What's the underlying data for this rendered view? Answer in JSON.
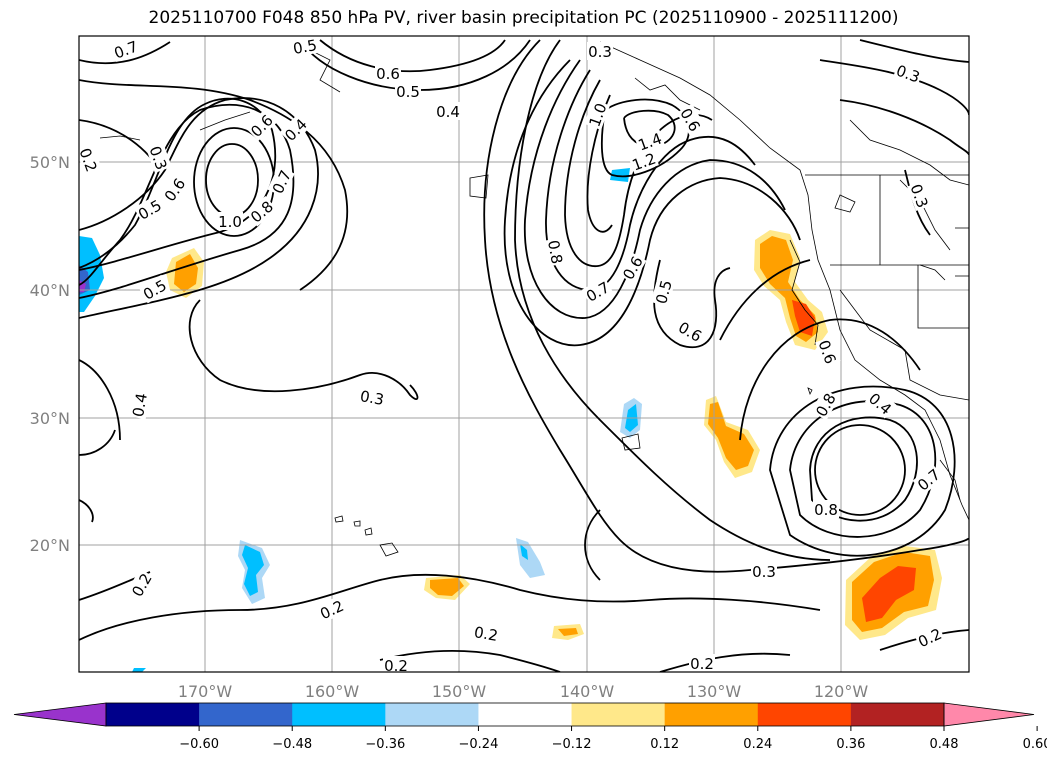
{
  "title": "2025110700 F048 850 hPa PV, river basin precipitation PC (2025110900 - 2025111200)",
  "lat_labels": [
    "50°N",
    "40°N",
    "30°N",
    "20°N"
  ],
  "lon_labels": [
    "170°W",
    "160°W",
    "150°W",
    "140°W",
    "130°W",
    "120°W"
  ],
  "colorbar": {
    "ticks": [
      "−0.60",
      "−0.48",
      "−0.36",
      "−0.24",
      "−0.12",
      "0.12",
      "0.24",
      "0.36",
      "0.48",
      "0.60"
    ],
    "colors": [
      "#9933cc",
      "#00008b",
      "#3366cc",
      "#00bfff",
      "#add8f6",
      "#ffffff",
      "#ffe88a",
      "#ffa000",
      "#ff4500",
      "#b22222",
      "#ff88aa"
    ]
  },
  "contour_labels": [
    {
      "t": "0.7"
    },
    {
      "t": "0.2"
    },
    {
      "t": "0.3"
    },
    {
      "t": "0.5"
    },
    {
      "t": "0.6"
    },
    {
      "t": "0.5"
    },
    {
      "t": "1.0"
    },
    {
      "t": "0.8"
    },
    {
      "t": "0.7"
    },
    {
      "t": "0.4"
    },
    {
      "t": "0.6"
    },
    {
      "t": "0.5"
    },
    {
      "t": "0.5"
    },
    {
      "t": "0.6"
    },
    {
      "t": "0.4"
    },
    {
      "t": "0.4"
    },
    {
      "t": "0.3"
    },
    {
      "t": "0.3"
    },
    {
      "t": "1.0"
    },
    {
      "t": "1.4"
    },
    {
      "t": "1.2"
    },
    {
      "t": "0.8"
    },
    {
      "t": "0.7"
    },
    {
      "t": "0.6"
    },
    {
      "t": "0.5"
    },
    {
      "t": "0.6"
    },
    {
      "t": "0.8"
    },
    {
      "t": "0.6"
    },
    {
      "t": "0.3"
    },
    {
      "t": "0.3"
    },
    {
      "t": "0.4"
    },
    {
      "t": "0.6"
    },
    {
      "t": "0.8"
    },
    {
      "t": "0.7"
    },
    {
      "t": "0.3"
    },
    {
      "t": "0.2"
    },
    {
      "t": "0.2"
    },
    {
      "t": "0.2"
    },
    {
      "t": "0.2"
    },
    {
      "t": "0.2"
    },
    {
      "t": "0.2"
    }
  ]
}
